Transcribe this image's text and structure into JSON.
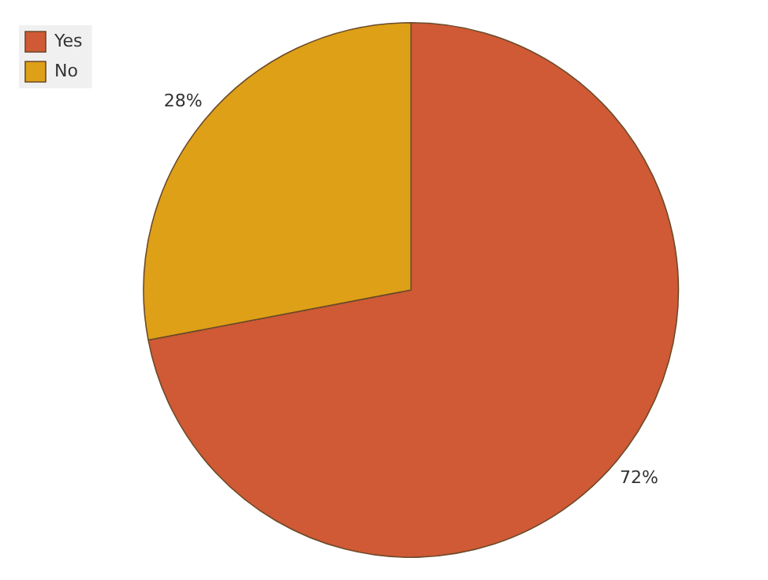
{
  "chart_data": {
    "type": "pie",
    "categories": [
      "Yes",
      "No"
    ],
    "values": [
      72,
      28
    ],
    "colors": [
      "#cf5a35",
      "#dea017"
    ],
    "value_labels": [
      "72%",
      "28%"
    ],
    "legend": "top left"
  }
}
